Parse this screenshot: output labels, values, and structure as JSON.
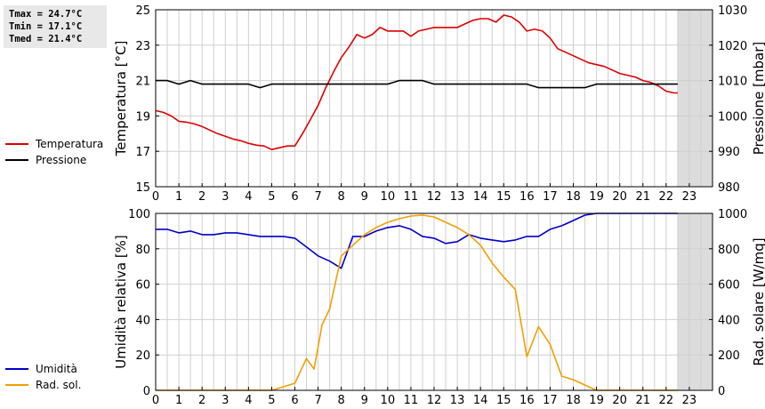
{
  "stats": {
    "tmax": "Tmax = 24.7°C",
    "tmin": "Tmin = 17.1°C",
    "tmed": "Tmed = 21.4°C"
  },
  "legend_top": [
    {
      "label": "Temperatura",
      "color": "#dd0000"
    },
    {
      "label": "Pressione",
      "color": "#000000"
    }
  ],
  "legend_bottom": [
    {
      "label": "Umidità",
      "color": "#0000cc"
    },
    {
      "label": "Rad. sol.",
      "color": "#f0a000"
    }
  ],
  "chart_data": [
    {
      "type": "line",
      "xlim": [
        0,
        24
      ],
      "x_ticks": [
        0,
        1,
        2,
        3,
        4,
        5,
        6,
        7,
        8,
        9,
        10,
        11,
        12,
        13,
        14,
        15,
        16,
        17,
        18,
        19,
        20,
        21,
        22,
        23
      ],
      "shaded_x_from": 22.5,
      "grid": true,
      "ylabel": "Temperatura [°C]",
      "ylim": [
        15,
        25
      ],
      "y_ticks": [
        15,
        17,
        19,
        21,
        23,
        25
      ],
      "y2label": "Pressione [mbar]",
      "y2lim": [
        980,
        1030
      ],
      "y2_ticks": [
        980,
        990,
        1000,
        1010,
        1020,
        1030
      ],
      "series": [
        {
          "name": "Temperatura",
          "axis": "left",
          "color": "#dd0000",
          "x": [
            0,
            0.33,
            0.67,
            1,
            1.33,
            1.67,
            2,
            2.33,
            2.67,
            3,
            3.33,
            3.67,
            4,
            4.33,
            4.67,
            5,
            5.33,
            5.67,
            6,
            6.33,
            6.67,
            7,
            7.33,
            7.67,
            8,
            8.33,
            8.67,
            9,
            9.33,
            9.67,
            10,
            10.33,
            10.67,
            11,
            11.33,
            11.67,
            12,
            12.33,
            12.67,
            13,
            13.33,
            13.67,
            14,
            14.33,
            14.67,
            15,
            15.33,
            15.67,
            16,
            16.33,
            16.67,
            17,
            17.33,
            17.67,
            18,
            18.33,
            18.67,
            19,
            19.33,
            19.67,
            20,
            20.33,
            20.67,
            21,
            21.33,
            21.67,
            22,
            22.33,
            22.5
          ],
          "values": [
            19.3,
            19.2,
            19.0,
            18.7,
            18.65,
            18.55,
            18.4,
            18.2,
            18.0,
            17.85,
            17.7,
            17.6,
            17.45,
            17.35,
            17.3,
            17.1,
            17.2,
            17.3,
            17.3,
            18.0,
            18.8,
            19.6,
            20.6,
            21.5,
            22.3,
            22.9,
            23.6,
            23.4,
            23.6,
            24.0,
            23.8,
            23.8,
            23.8,
            23.5,
            23.8,
            23.9,
            24.0,
            24.0,
            24.0,
            24.0,
            24.2,
            24.4,
            24.5,
            24.5,
            24.3,
            24.7,
            24.6,
            24.3,
            23.8,
            23.9,
            23.8,
            23.4,
            22.8,
            22.6,
            22.4,
            22.2,
            22.0,
            21.9,
            21.8,
            21.6,
            21.4,
            21.3,
            21.2,
            21.0,
            20.9,
            20.7,
            20.4,
            20.3,
            20.3
          ]
        },
        {
          "name": "Pressione",
          "axis": "right",
          "color": "#000000",
          "x": [
            0,
            0.5,
            1,
            1.5,
            2,
            3,
            4,
            4.5,
            5,
            5.5,
            6,
            7,
            8,
            9,
            10,
            10.5,
            11,
            11.5,
            12,
            13,
            14,
            15,
            15.5,
            16,
            16.5,
            17,
            17.5,
            18,
            18.5,
            19,
            19.5,
            20,
            21,
            22,
            22.5
          ],
          "values": [
            1010,
            1010,
            1009,
            1010,
            1009,
            1009,
            1009,
            1008,
            1009,
            1009,
            1009,
            1009,
            1009,
            1009,
            1009,
            1010,
            1010,
            1010,
            1009,
            1009,
            1009,
            1009,
            1009,
            1009,
            1008,
            1008,
            1008,
            1008,
            1008,
            1009,
            1009,
            1009,
            1009,
            1009,
            1009
          ]
        }
      ]
    },
    {
      "type": "line",
      "xlim": [
        0,
        24
      ],
      "x_ticks": [
        0,
        1,
        2,
        3,
        4,
        5,
        6,
        7,
        8,
        9,
        10,
        11,
        12,
        13,
        14,
        15,
        16,
        17,
        18,
        19,
        20,
        21,
        22,
        23
      ],
      "shaded_x_from": 22.5,
      "grid": true,
      "ylabel": "Umidità relativa [%]",
      "ylim": [
        0,
        100
      ],
      "y_ticks": [
        0,
        20,
        40,
        60,
        80,
        100
      ],
      "y2label": "Rad. solare [W/mq]",
      "y2lim": [
        0,
        1000
      ],
      "y2_ticks": [
        0,
        200,
        400,
        600,
        800,
        1000
      ],
      "series": [
        {
          "name": "Umidità",
          "axis": "left",
          "color": "#0000cc",
          "x": [
            0,
            0.5,
            1,
            1.5,
            2,
            2.5,
            3,
            3.5,
            4,
            4.5,
            5,
            5.5,
            6,
            6.5,
            7,
            7.5,
            8,
            8.5,
            9,
            9.5,
            10,
            10.5,
            11,
            11.5,
            12,
            12.5,
            13,
            13.5,
            14,
            14.5,
            15,
            15.5,
            16,
            16.5,
            17,
            17.5,
            18,
            18.5,
            19,
            19.5,
            20,
            20.5,
            21,
            21.5,
            22,
            22.5
          ],
          "values": [
            91,
            91,
            89,
            90,
            88,
            88,
            89,
            89,
            88,
            87,
            87,
            87,
            86,
            81,
            76,
            73,
            69,
            87,
            87,
            90,
            92,
            93,
            91,
            87,
            86,
            83,
            84,
            88,
            86,
            85,
            84,
            85,
            87,
            87,
            91,
            93,
            96,
            99,
            100,
            100,
            100,
            100,
            100,
            100,
            100,
            100
          ]
        },
        {
          "name": "Rad. sol.",
          "axis": "right",
          "color": "#f0a000",
          "x": [
            0,
            1,
            2,
            3,
            4,
            5,
            5.5,
            6,
            6.5,
            6.83,
            7.17,
            7.5,
            8,
            8.5,
            9,
            9.5,
            10,
            10.5,
            11,
            11.5,
            12,
            12.5,
            13,
            13.5,
            14,
            14.5,
            15,
            15.5,
            16,
            16.5,
            17,
            17.5,
            18,
            18.5,
            19,
            20,
            21,
            22,
            22.5
          ],
          "values": [
            0,
            0,
            0,
            0,
            0,
            0,
            20,
            40,
            180,
            120,
            370,
            460,
            760,
            820,
            880,
            920,
            950,
            970,
            985,
            990,
            980,
            950,
            920,
            880,
            820,
            720,
            640,
            570,
            190,
            360,
            260,
            80,
            60,
            30,
            0,
            0,
            0,
            0,
            0
          ]
        }
      ]
    }
  ]
}
